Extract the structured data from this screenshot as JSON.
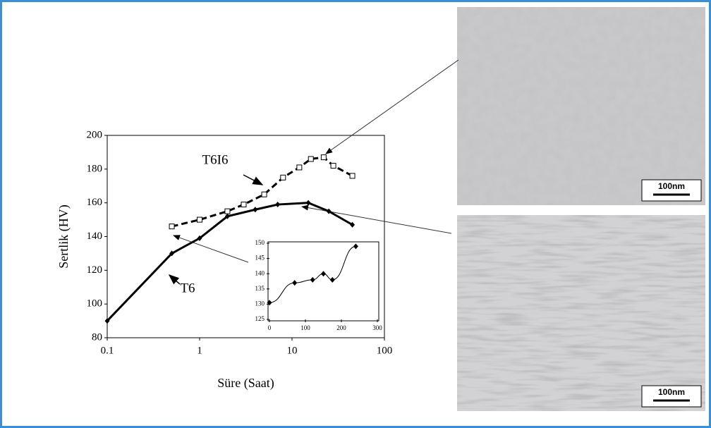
{
  "chart_data": [
    {
      "type": "line",
      "xlabel": "Süre (Saat)",
      "ylabel": "Sertlik (HV)",
      "log_x": true,
      "xlim": [
        0.1,
        100
      ],
      "xticks": [
        0.1,
        1,
        10,
        100
      ],
      "ylim": [
        80,
        200
      ],
      "yticks": [
        80,
        100,
        120,
        140,
        160,
        180,
        200
      ],
      "series": [
        {
          "name": "T6",
          "color": "#000000",
          "x": [
            0.1,
            0.5,
            1,
            2,
            4,
            7,
            15,
            25,
            45
          ],
          "values": [
            90,
            130,
            139,
            152,
            156,
            159,
            160,
            155,
            147
          ]
        },
        {
          "name": "T6I6",
          "color": "#000000",
          "x": [
            0.5,
            1,
            2,
            3,
            5,
            8,
            12,
            16,
            22,
            28,
            45
          ],
          "values": [
            146,
            150,
            155,
            159,
            165,
            175,
            181,
            186,
            187,
            182,
            176
          ]
        }
      ]
    },
    {
      "type": "scatter",
      "xlim": [
        0,
        300
      ],
      "xticks": [
        0,
        100,
        200,
        300
      ],
      "ylim": [
        125,
        150
      ],
      "yticks": [
        125,
        130,
        135,
        140,
        145,
        150
      ],
      "series": [
        {
          "color": "#000000",
          "x": [
            0,
            70,
            120,
            150,
            175,
            240
          ],
          "values": [
            130.5,
            137,
            138,
            140,
            138,
            149
          ]
        }
      ]
    }
  ],
  "micrographs": [
    {
      "scale_bar": "100nm"
    },
    {
      "scale_bar": "100nm"
    }
  ]
}
